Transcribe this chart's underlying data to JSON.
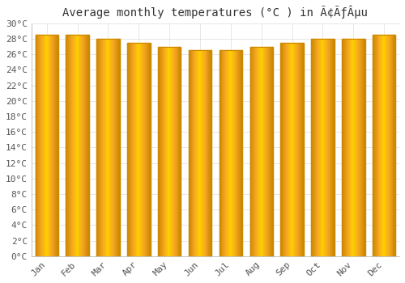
{
  "title": "Average monthly temperatures (°C ) in AÃƒÂµu",
  "title_text": "Average monthly temperatures (°C ) in Ã£u",
  "months": [
    "Jan",
    "Feb",
    "Mar",
    "Apr",
    "May",
    "Jun",
    "Jul",
    "Aug",
    "Sep",
    "Oct",
    "Nov",
    "Dec"
  ],
  "temperatures": [
    28.5,
    28.5,
    28.0,
    27.5,
    27.0,
    26.5,
    26.5,
    27.0,
    27.5,
    28.0,
    28.0,
    28.5
  ],
  "bar_color_left": "#F5A623",
  "bar_color_center": "#FFD000",
  "bar_color_right": "#E8950A",
  "bar_edge_color": "#CC8800",
  "background_color": "#ffffff",
  "plot_bg_color": "#ffffff",
  "grid_color": "#dddddd",
  "ylim": [
    0,
    30
  ],
  "ytick_interval": 2,
  "title_fontsize": 10,
  "tick_fontsize": 8,
  "bar_width": 0.75
}
